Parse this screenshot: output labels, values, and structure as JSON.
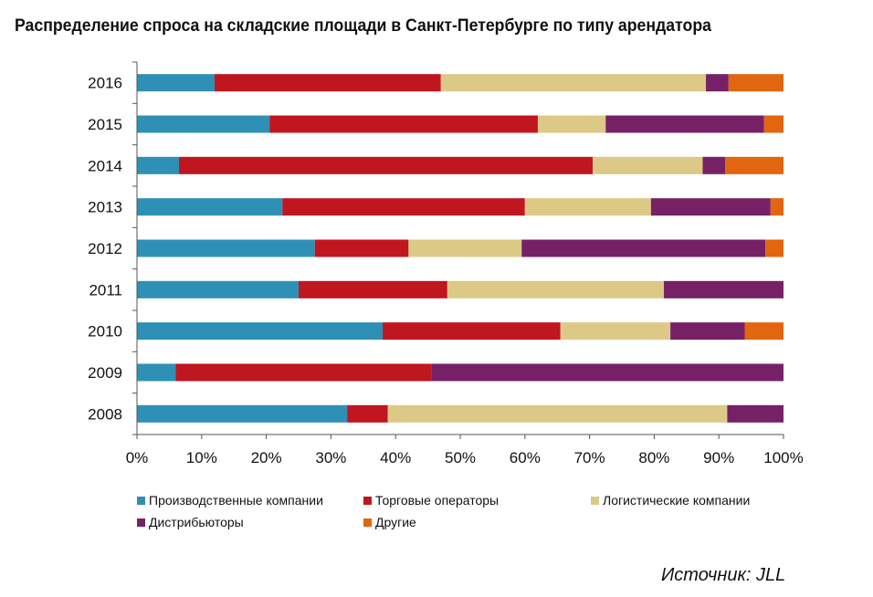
{
  "title": "Распределение спроса на складские площади в Санкт-Петербурге по типу арендатора",
  "source": "Источник: JLL",
  "colors": {
    "production": "#2f90b6",
    "retail": "#c0161f",
    "logistics": "#dcc986",
    "distributors": "#762166",
    "other": "#e2650f"
  },
  "chart_data": {
    "type": "bar",
    "orientation": "horizontal",
    "stacked": true,
    "normalized": true,
    "categories": [
      "2016",
      "2015",
      "2014",
      "2013",
      "2012",
      "2011",
      "2010",
      "2009",
      "2008"
    ],
    "series": [
      {
        "name": "Производственные компании",
        "color": "#2f90b6",
        "values": [
          12,
          20.5,
          6.5,
          22.5,
          27.5,
          25,
          38,
          6,
          32.5
        ]
      },
      {
        "name": "Торговые операторы",
        "color": "#c0161f",
        "values": [
          35,
          41.5,
          64,
          37.5,
          14.5,
          23,
          27.5,
          39.5,
          6.3
        ]
      },
      {
        "name": "Логистические компании",
        "color": "#dcc986",
        "values": [
          41,
          10.5,
          17,
          19.5,
          17.5,
          33.5,
          17,
          0,
          52.5
        ]
      },
      {
        "name": "Дистрибьюторы",
        "color": "#762166",
        "values": [
          3.5,
          24.5,
          3.5,
          18.5,
          37.7,
          18.5,
          11.5,
          54.5,
          8.7
        ]
      },
      {
        "name": "Другие",
        "color": "#e2650f",
        "values": [
          8.5,
          3,
          9,
          2,
          2.8,
          0,
          6,
          0,
          0
        ]
      }
    ],
    "x_ticks": [
      "0%",
      "10%",
      "20%",
      "30%",
      "40%",
      "50%",
      "60%",
      "70%",
      "80%",
      "90%",
      "100%"
    ],
    "xlim": [
      0,
      100
    ],
    "legend_position": "bottom"
  }
}
